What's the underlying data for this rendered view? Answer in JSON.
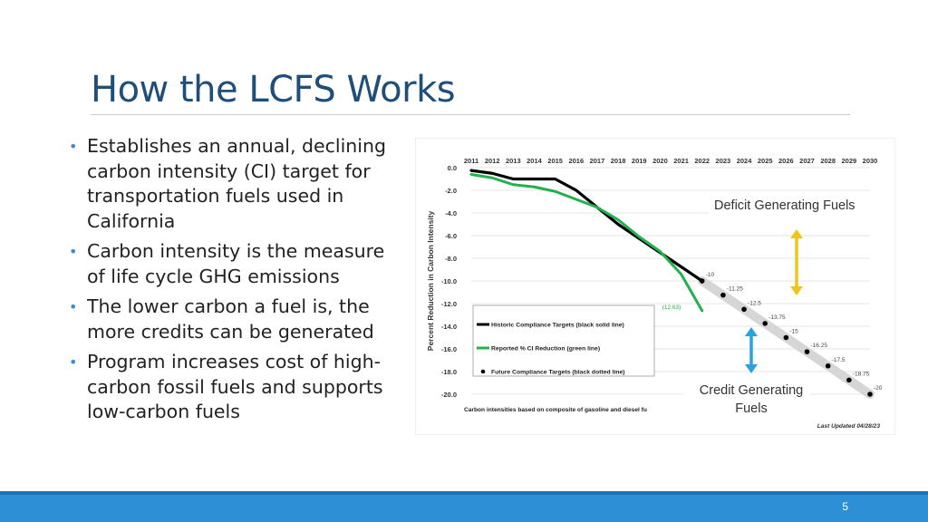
{
  "slide": {
    "title": "How the LCFS Works",
    "bullets": [
      "Establishes an annual, declining carbon intensity (CI) target for transportation fuels used in California",
      "Carbon intensity is the measure of life cycle GHG emissions",
      "The lower carbon a fuel is, the more credits can be generated",
      "Program increases cost of high-carbon fossil fuels and supports low-carbon fuels"
    ],
    "page_number": "5"
  },
  "colors": {
    "title": "#1f4e79",
    "bullet": "#3a8fd4",
    "footer": "#2d8fd6",
    "historic": "#000000",
    "reported": "#22b14c",
    "future_band": "#d6d6d6",
    "deficit_arrow": "#f0c419",
    "credit_arrow": "#29a3dd"
  },
  "chart_data": {
    "type": "line",
    "ylabel": "Percent Reduction in Carbon Intensity",
    "x_ticks": [
      "2011",
      "2012",
      "2013",
      "2014",
      "2015",
      "2016",
      "2017",
      "2018",
      "2019",
      "2020",
      "2021",
      "2022",
      "2023",
      "2024",
      "2025",
      "2026",
      "2027",
      "2028",
      "2029",
      "2030"
    ],
    "y_ticks": [
      "0.0",
      "-2.0",
      "-4.0",
      "-6.0",
      "-8.0",
      "-10.0",
      "-12.0",
      "-14.0",
      "-16.0",
      "-18.0",
      "-20.0"
    ],
    "ylim": [
      -20,
      0
    ],
    "xlim": [
      2011,
      2030
    ],
    "grid": true,
    "series": [
      {
        "name": "Historic Compliance Targets (black solid line)",
        "style": "solid",
        "color": "#000000",
        "x": [
          2011,
          2012,
          2013,
          2014,
          2015,
          2016,
          2017,
          2018,
          2019,
          2020,
          2021,
          2022
        ],
        "y": [
          -0.25,
          -0.5,
          -1.0,
          -1.0,
          -1.0,
          -2.0,
          -3.5,
          -5.0,
          -6.25,
          -7.5,
          -8.75,
          -10.0
        ]
      },
      {
        "name": "Reported % CI Reduction (green line)",
        "style": "solid",
        "color": "#22b14c",
        "x": [
          2011,
          2012,
          2013,
          2014,
          2015,
          2016,
          2017,
          2018,
          2019,
          2020,
          2021,
          2022
        ],
        "y": [
          -0.6,
          -0.9,
          -1.5,
          -1.7,
          -2.1,
          -2.8,
          -3.5,
          -4.6,
          -6.1,
          -7.4,
          -9.4,
          -12.63
        ]
      },
      {
        "name": "Future Compliance Targets (black dotted line)",
        "style": "dotted",
        "color": "#000000",
        "x": [
          2022,
          2023,
          2024,
          2025,
          2026,
          2027,
          2028,
          2029,
          2030
        ],
        "y": [
          -10,
          -11.25,
          -12.5,
          -13.75,
          -15,
          -16.25,
          -17.5,
          -18.75,
          -20
        ]
      }
    ],
    "point_labels": [
      {
        "x": 2022,
        "y": -10,
        "text": "-10"
      },
      {
        "x": 2023,
        "y": -11.25,
        "text": "-11.25"
      },
      {
        "x": 2024,
        "y": -12.5,
        "text": "-12.5"
      },
      {
        "x": 2025,
        "y": -13.75,
        "text": "-13.75"
      },
      {
        "x": 2026,
        "y": -15,
        "text": "-15"
      },
      {
        "x": 2027,
        "y": -16.25,
        "text": "-16.25"
      },
      {
        "x": 2028,
        "y": -17.5,
        "text": "-17.5"
      },
      {
        "x": 2029,
        "y": -18.75,
        "text": "-18.75"
      },
      {
        "x": 2030,
        "y": -20,
        "text": "-20"
      }
    ],
    "reported_label": {
      "x": 2022,
      "y": -12.63,
      "text": "(12.63)"
    },
    "annotations": {
      "deficit": "Deficit Generating Fuels",
      "credit_line1": "Credit Generating",
      "credit_line2": "Fuels",
      "footnote": "Carbon intensities based on composite of gasoline and diesel fu",
      "updated": "Last Updated 04/28/23"
    },
    "legend": {
      "placement": "bottom-left",
      "items": [
        {
          "text": "Historic Compliance Targets (black solid line)",
          "marker": "line",
          "color": "#000000"
        },
        {
          "text": "Reported % CI Reduction (green line)",
          "marker": "line",
          "color": "#22b14c"
        },
        {
          "text": "Future Compliance Targets (black dotted line)",
          "marker": "dot",
          "color": "#000000"
        }
      ]
    }
  }
}
